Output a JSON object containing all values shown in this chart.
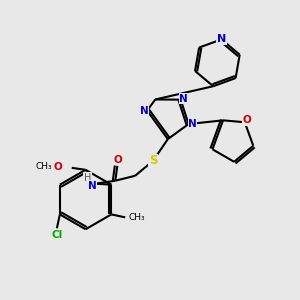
{
  "bg_color": "#e8e8e8",
  "atom_colors": {
    "N": "#0000cc",
    "O": "#cc0000",
    "S": "#cccc00",
    "Cl": "#00aa00",
    "C": "#000000",
    "H": "#555555"
  },
  "font_size": 7.5,
  "fig_size": [
    3.0,
    3.0
  ],
  "dpi": 100
}
